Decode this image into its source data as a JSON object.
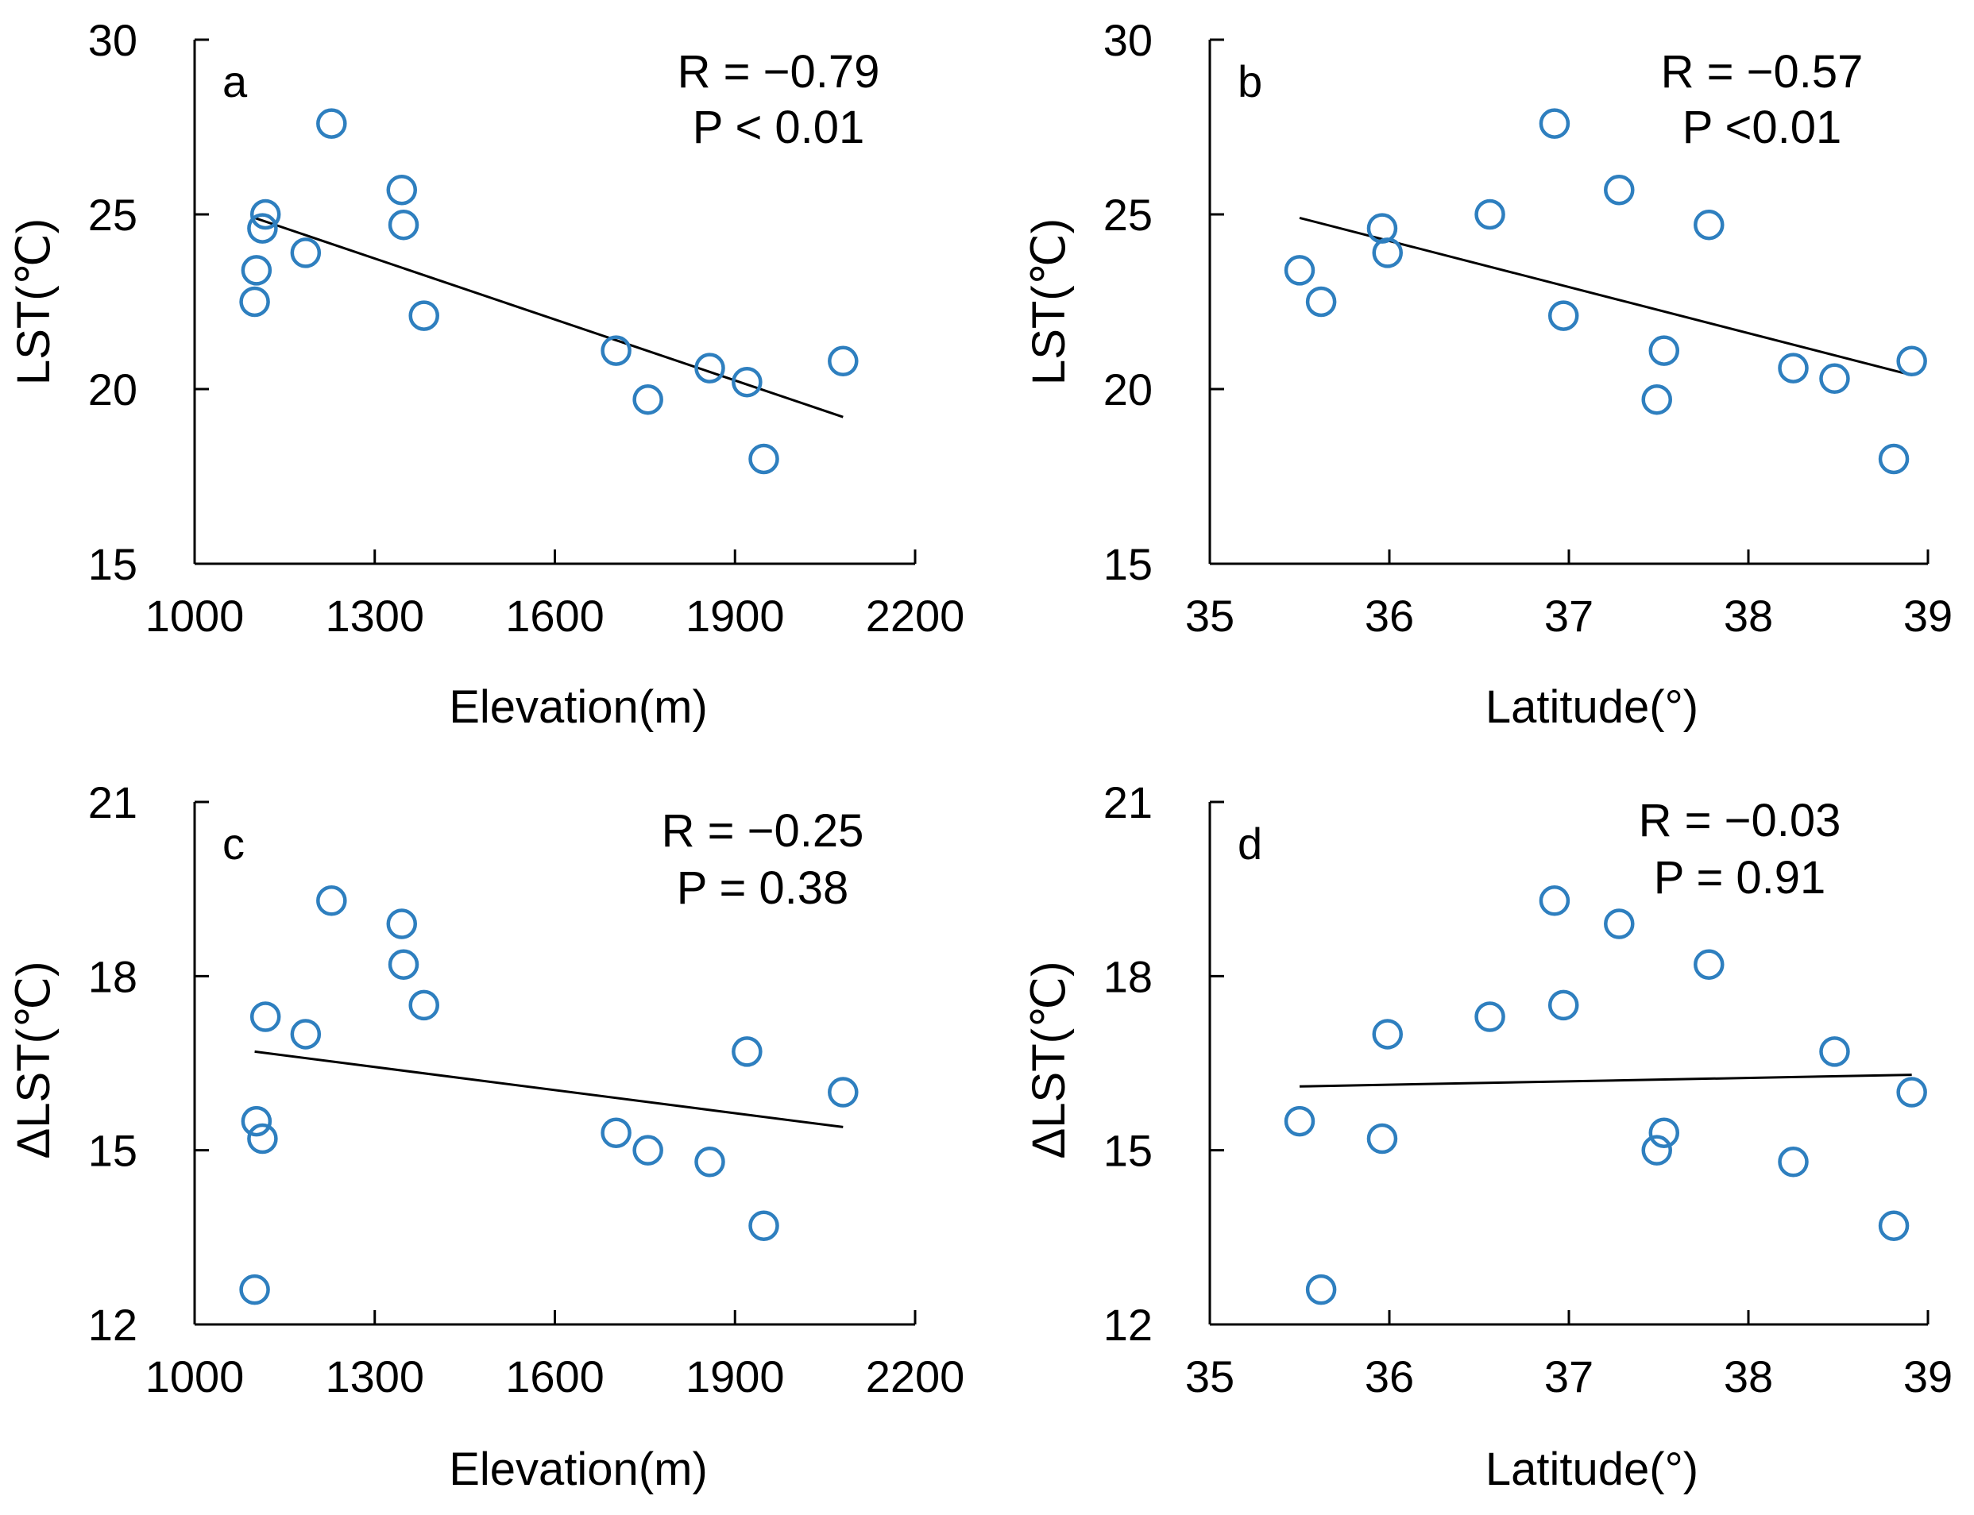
{
  "colors": {
    "marker": "#2E7FBF",
    "line": "#000000"
  },
  "chart_data": [
    {
      "type": "scatter",
      "panel": "a",
      "xlabel": "Elevation(m)",
      "ylabel": "LST(℃)",
      "xlim": [
        1000,
        2200
      ],
      "ylim": [
        15,
        30
      ],
      "xticks": [
        1000,
        1300,
        1600,
        1900,
        2200
      ],
      "yticks": [
        15,
        20,
        25,
        30
      ],
      "xtick_labels": [
        "1000",
        "1300",
        "1600",
        "1900",
        "2200"
      ],
      "ytick_labels": [
        "15",
        "20",
        "25",
        "30"
      ],
      "stats": [
        "R = −0.79",
        "P < 0.01"
      ],
      "points": [
        {
          "x": 1100,
          "y": 22.5
        },
        {
          "x": 1103,
          "y": 23.4
        },
        {
          "x": 1113,
          "y": 24.6
        },
        {
          "x": 1118,
          "y": 25.0
        },
        {
          "x": 1185,
          "y": 23.9
        },
        {
          "x": 1228,
          "y": 27.6
        },
        {
          "x": 1345,
          "y": 25.7
        },
        {
          "x": 1348,
          "y": 24.7
        },
        {
          "x": 1382,
          "y": 22.1
        },
        {
          "x": 1702,
          "y": 21.1
        },
        {
          "x": 1755,
          "y": 19.7
        },
        {
          "x": 1858,
          "y": 20.6
        },
        {
          "x": 1920,
          "y": 20.2
        },
        {
          "x": 1948,
          "y": 18.0
        },
        {
          "x": 2080,
          "y": 20.8
        }
      ],
      "fit": [
        {
          "x": 1100,
          "y": 24.9
        },
        {
          "x": 2080,
          "y": 19.2
        }
      ]
    },
    {
      "type": "scatter",
      "panel": "b",
      "xlabel": "Latitude(°)",
      "ylabel": "LST(℃)",
      "xlim": [
        35,
        39
      ],
      "ylim": [
        15,
        30
      ],
      "xticks": [
        35,
        36,
        37,
        38,
        39
      ],
      "yticks": [
        15,
        20,
        25,
        30
      ],
      "xtick_labels": [
        "35",
        "36",
        "37",
        "38",
        "39"
      ],
      "ytick_labels": [
        "15",
        "20",
        "25",
        "30"
      ],
      "stats": [
        "R = −0.57",
        "P <0.01"
      ],
      "points": [
        {
          "x": 35.5,
          "y": 23.4
        },
        {
          "x": 35.62,
          "y": 22.5
        },
        {
          "x": 35.96,
          "y": 24.6
        },
        {
          "x": 35.99,
          "y": 23.9
        },
        {
          "x": 36.56,
          "y": 25.0
        },
        {
          "x": 36.92,
          "y": 27.6
        },
        {
          "x": 36.97,
          "y": 22.1
        },
        {
          "x": 37.28,
          "y": 25.7
        },
        {
          "x": 37.49,
          "y": 19.7
        },
        {
          "x": 37.53,
          "y": 21.1
        },
        {
          "x": 37.78,
          "y": 24.7
        },
        {
          "x": 38.25,
          "y": 20.6
        },
        {
          "x": 38.48,
          "y": 20.3
        },
        {
          "x": 38.81,
          "y": 18.0
        },
        {
          "x": 38.91,
          "y": 20.8
        }
      ],
      "fit": [
        {
          "x": 35.5,
          "y": 24.9
        },
        {
          "x": 38.91,
          "y": 20.4
        }
      ]
    },
    {
      "type": "scatter",
      "panel": "c",
      "xlabel": "Elevation(m)",
      "ylabel": "ΔLST(℃)",
      "xlim": [
        1000,
        2200
      ],
      "ylim": [
        12,
        21
      ],
      "xticks": [
        1000,
        1300,
        1600,
        1900,
        2200
      ],
      "yticks": [
        12,
        15,
        18,
        21
      ],
      "xtick_labels": [
        "1000",
        "1300",
        "1600",
        "1900",
        "2200"
      ],
      "ytick_labels": [
        "12",
        "15",
        "18",
        "21"
      ],
      "stats": [
        "R = −0.25",
        "P = 0.38"
      ],
      "points": [
        {
          "x": 1100,
          "y": 12.6
        },
        {
          "x": 1103,
          "y": 15.5
        },
        {
          "x": 1113,
          "y": 15.2
        },
        {
          "x": 1118,
          "y": 17.3
        },
        {
          "x": 1185,
          "y": 17.0
        },
        {
          "x": 1228,
          "y": 19.3
        },
        {
          "x": 1345,
          "y": 18.9
        },
        {
          "x": 1348,
          "y": 18.2
        },
        {
          "x": 1382,
          "y": 17.5
        },
        {
          "x": 1702,
          "y": 15.3
        },
        {
          "x": 1755,
          "y": 15.0
        },
        {
          "x": 1858,
          "y": 14.8
        },
        {
          "x": 1920,
          "y": 16.7
        },
        {
          "x": 1948,
          "y": 13.7
        },
        {
          "x": 2080,
          "y": 16.0
        }
      ],
      "fit": [
        {
          "x": 1100,
          "y": 16.7
        },
        {
          "x": 2080,
          "y": 15.4
        }
      ]
    },
    {
      "type": "scatter",
      "panel": "d",
      "xlabel": "Latitude(°)",
      "ylabel": "ΔLST(℃)",
      "xlim": [
        35,
        39
      ],
      "ylim": [
        12,
        21
      ],
      "xticks": [
        35,
        36,
        37,
        38,
        39
      ],
      "yticks": [
        12,
        15,
        18,
        21
      ],
      "xtick_labels": [
        "35",
        "36",
        "37",
        "38",
        "39"
      ],
      "ytick_labels": [
        "12",
        "15",
        "18",
        "21"
      ],
      "stats": [
        "R = −0.03",
        "P = 0.91"
      ],
      "points": [
        {
          "x": 35.5,
          "y": 15.5
        },
        {
          "x": 35.62,
          "y": 12.6
        },
        {
          "x": 35.96,
          "y": 15.2
        },
        {
          "x": 35.99,
          "y": 17.0
        },
        {
          "x": 36.56,
          "y": 17.3
        },
        {
          "x": 36.92,
          "y": 19.3
        },
        {
          "x": 36.97,
          "y": 17.5
        },
        {
          "x": 37.28,
          "y": 18.9
        },
        {
          "x": 37.49,
          "y": 15.0
        },
        {
          "x": 37.53,
          "y": 15.3
        },
        {
          "x": 37.78,
          "y": 18.2
        },
        {
          "x": 38.25,
          "y": 14.8
        },
        {
          "x": 38.48,
          "y": 16.7
        },
        {
          "x": 38.81,
          "y": 13.7
        },
        {
          "x": 38.91,
          "y": 16.0
        }
      ],
      "fit": [
        {
          "x": 35.5,
          "y": 16.1
        },
        {
          "x": 38.91,
          "y": 16.3
        }
      ]
    }
  ]
}
